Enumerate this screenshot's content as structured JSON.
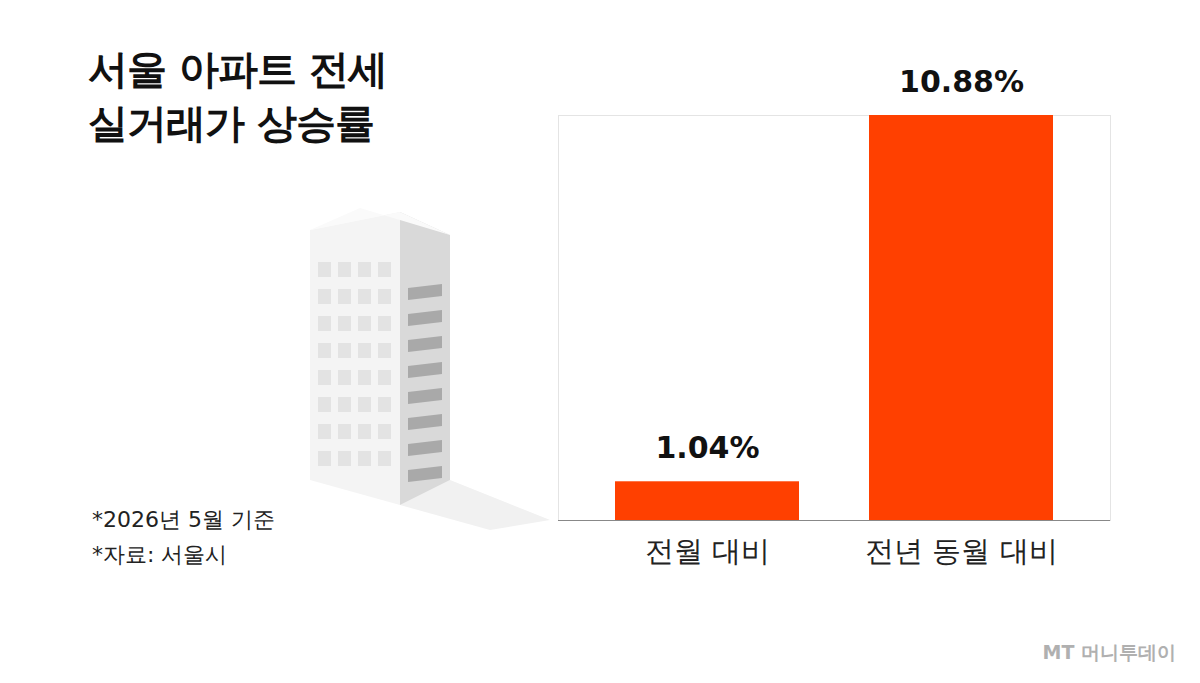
{
  "chart_data": {
    "type": "bar",
    "title": "서울 아파트 전세\n실거래가 상승률",
    "categories": [
      "전월 대비",
      "전년 동월 대비"
    ],
    "values": [
      1.04,
      10.88
    ],
    "value_labels": [
      "1.04%",
      "10.88%"
    ],
    "data_labels": true,
    "color": "#ff4000",
    "ylim": [
      0,
      10.88
    ],
    "tick_labels": "x",
    "annotations": [
      "*2026년 5월 기준",
      "*자료: 서울시"
    ],
    "credit": "MT 머니투데이"
  }
}
